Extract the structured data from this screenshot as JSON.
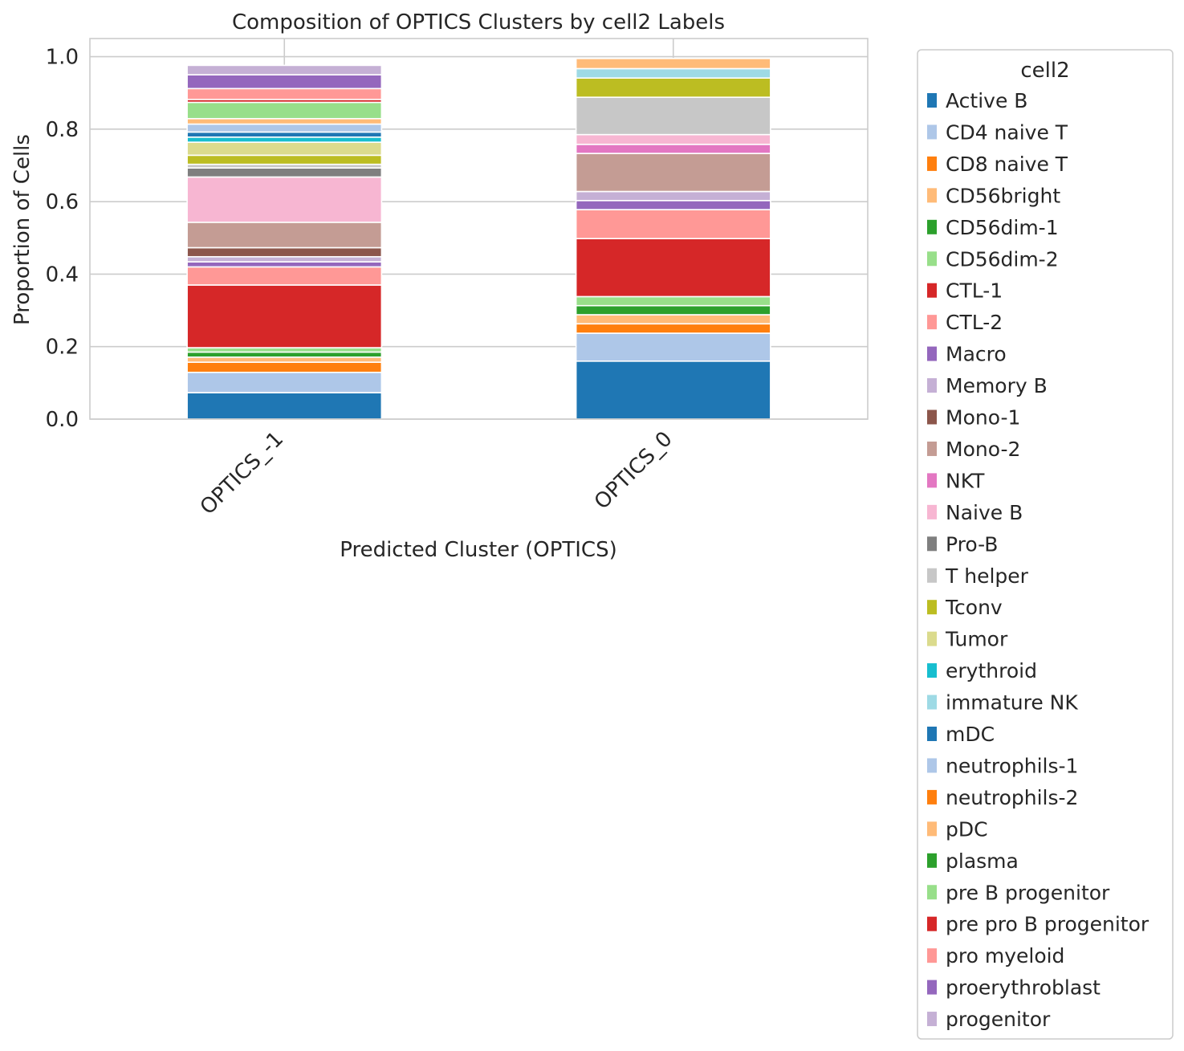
{
  "chart_data": {
    "type": "bar",
    "stacked": true,
    "title": "Composition of OPTICS Clusters by cell2 Labels",
    "xlabel": "Predicted Cluster (OPTICS)",
    "ylabel": "Proportion of Cells",
    "ylim": [
      0,
      1.05
    ],
    "yticks": [
      "0.0",
      "0.2",
      "0.4",
      "0.6",
      "0.8",
      "1.0"
    ],
    "categories": [
      "OPTICS_-1",
      "OPTICS_0"
    ],
    "grid": true,
    "legend_title": "cell2",
    "legend_position": "outside right",
    "series": [
      {
        "name": "Active B",
        "color": "#1f77b4",
        "values": [
          0.073,
          0.16
        ]
      },
      {
        "name": "CD4 naive T",
        "color": "#aec7e8",
        "values": [
          0.056,
          0.077
        ]
      },
      {
        "name": "CD8 naive T",
        "color": "#ff7f0e",
        "values": [
          0.028,
          0.026
        ]
      },
      {
        "name": "CD56bright",
        "color": "#ffbb78",
        "values": [
          0.014,
          0.025
        ]
      },
      {
        "name": "CD56dim-1",
        "color": "#2ca02c",
        "values": [
          0.014,
          0.025
        ]
      },
      {
        "name": "CD56dim-2",
        "color": "#98df8a",
        "values": [
          0.012,
          0.025
        ]
      },
      {
        "name": "CTL-1",
        "color": "#d62728",
        "values": [
          0.173,
          0.16
        ]
      },
      {
        "name": "CTL-2",
        "color": "#ff9896",
        "values": [
          0.05,
          0.08
        ]
      },
      {
        "name": "Macro",
        "color": "#9467bd",
        "values": [
          0.014,
          0.025
        ]
      },
      {
        "name": "Memory B",
        "color": "#c5b0d5",
        "values": [
          0.014,
          0.025
        ]
      },
      {
        "name": "Mono-1",
        "color": "#8c564b",
        "values": [
          0.025,
          0.0
        ]
      },
      {
        "name": "Mono-2",
        "color": "#c49c94",
        "values": [
          0.07,
          0.105
        ]
      },
      {
        "name": "NKT",
        "color": "#e377c2",
        "values": [
          0.0,
          0.025
        ]
      },
      {
        "name": "Naive B",
        "color": "#f7b6d2",
        "values": [
          0.125,
          0.027
        ]
      },
      {
        "name": "Pro-B",
        "color": "#7f7f7f",
        "values": [
          0.025,
          0.0
        ]
      },
      {
        "name": "T helper",
        "color": "#c7c7c7",
        "values": [
          0.01,
          0.103
        ]
      },
      {
        "name": "Tconv",
        "color": "#bcbd22",
        "values": [
          0.025,
          0.053
        ]
      },
      {
        "name": "Tumor",
        "color": "#dbdb8d",
        "values": [
          0.036,
          0.0
        ]
      },
      {
        "name": "erythroid",
        "color": "#17becf",
        "values": [
          0.014,
          0.0
        ]
      },
      {
        "name": "immature NK",
        "color": "#9edae5",
        "values": [
          0.0,
          0.026
        ]
      },
      {
        "name": "mDC",
        "color": "#1f77b4",
        "values": [
          0.014,
          0.0
        ]
      },
      {
        "name": "neutrophils-1",
        "color": "#aec7e8",
        "values": [
          0.022,
          0.0
        ]
      },
      {
        "name": "neutrophils-2",
        "color": "#ff7f0e",
        "values": [
          0.0,
          0.0
        ]
      },
      {
        "name": "pDC",
        "color": "#ffbb78",
        "values": [
          0.015,
          0.028
        ]
      },
      {
        "name": "plasma",
        "color": "#2ca02c",
        "values": [
          0.0,
          0.0
        ]
      },
      {
        "name": "pre B progenitor",
        "color": "#98df8a",
        "values": [
          0.045,
          0.0
        ]
      },
      {
        "name": "pre pro B progenitor",
        "color": "#d62728",
        "values": [
          0.008,
          0.0
        ]
      },
      {
        "name": "pro myeloid",
        "color": "#ff9896",
        "values": [
          0.03,
          0.0
        ]
      },
      {
        "name": "proerythroblast",
        "color": "#9467bd",
        "values": [
          0.038,
          0.0
        ]
      },
      {
        "name": "progenitor",
        "color": "#c5b0d5",
        "values": [
          0.026,
          0.0
        ]
      }
    ]
  }
}
